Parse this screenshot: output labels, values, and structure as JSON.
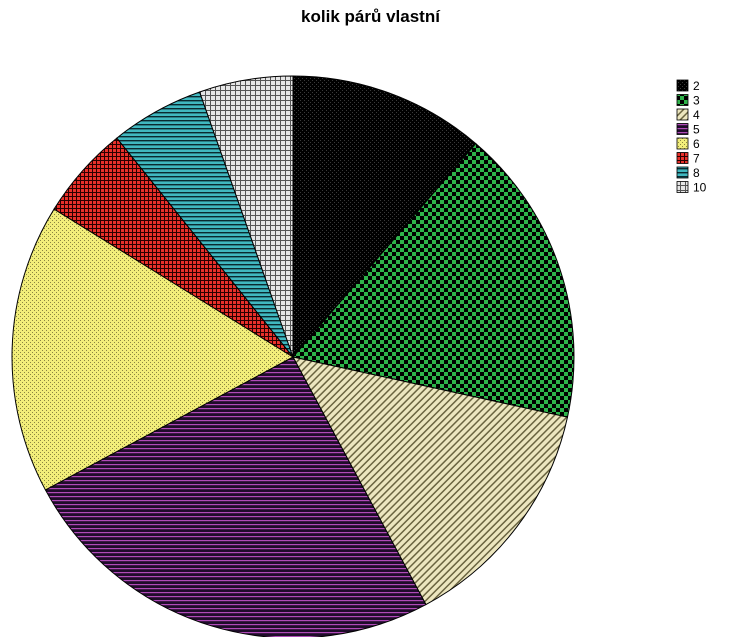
{
  "chart_data": {
    "type": "pie",
    "title": "kolik párů vlastní",
    "legend_position": "top-right",
    "slices": [
      {
        "label": "2",
        "value": 11.5,
        "color": "#000000",
        "pattern": "dots-on-black"
      },
      {
        "label": "3",
        "value": 17.5,
        "color": "#2eb34a",
        "pattern": "checker"
      },
      {
        "label": "4",
        "value": 14.0,
        "color": "#d8d0a0",
        "pattern": "diagonal"
      },
      {
        "label": "5",
        "value": 25.5,
        "color": "#2b0f3a",
        "pattern": "horizontal-stripes"
      },
      {
        "label": "6",
        "value": 17.0,
        "color": "#f2ee7a",
        "pattern": "dots"
      },
      {
        "label": "7",
        "value": 5.5,
        "color": "#e8302a",
        "pattern": "grid-dense"
      },
      {
        "label": "8",
        "value": 5.5,
        "color": "#40b8c0",
        "pattern": "horizontal-lines"
      },
      {
        "label": "10",
        "value": 5.5,
        "color": "#cccccc",
        "pattern": "grid"
      }
    ]
  }
}
